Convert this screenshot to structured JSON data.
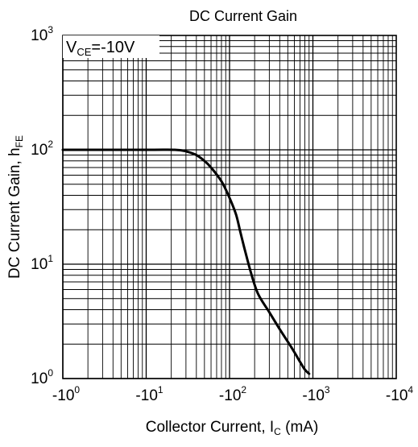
{
  "chart_data": {
    "type": "line",
    "title": "DC Current Gain",
    "xlabel": {
      "main": "Collector Current, I",
      "sub": "C",
      "unit": " (mA)"
    },
    "ylabel": {
      "main": "DC Current Gain, h",
      "sub": "FE"
    },
    "annotation": {
      "v": "V",
      "sub": "CE",
      "rest": "=-10V"
    },
    "x_scale": "log",
    "y_scale": "log",
    "xlim": [
      1,
      10000
    ],
    "ylim": [
      1,
      1000
    ],
    "grid": true,
    "x_ticks": [
      {
        "base": "-10",
        "exp": "0"
      },
      {
        "base": "-10",
        "exp": "1"
      },
      {
        "base": "-10",
        "exp": "2"
      },
      {
        "base": "-10",
        "exp": "3"
      },
      {
        "base": "-10",
        "exp": "4"
      }
    ],
    "y_ticks": [
      {
        "base": "10",
        "exp": "0"
      },
      {
        "base": "10",
        "exp": "1"
      },
      {
        "base": "10",
        "exp": "2"
      },
      {
        "base": "10",
        "exp": "3"
      }
    ],
    "series": [
      {
        "color": "#000000",
        "points": [
          [
            1,
            100
          ],
          [
            10,
            100
          ],
          [
            22,
            100
          ],
          [
            30,
            97
          ],
          [
            40,
            90
          ],
          [
            50,
            80
          ],
          [
            60,
            70
          ],
          [
            80,
            53
          ],
          [
            100,
            38
          ],
          [
            120,
            27
          ],
          [
            135,
            19
          ],
          [
            150,
            14
          ],
          [
            180,
            8.5
          ],
          [
            220,
            5.5
          ],
          [
            300,
            3.8
          ],
          [
            400,
            2.7
          ],
          [
            500,
            2.1
          ],
          [
            600,
            1.7
          ],
          [
            700,
            1.4
          ],
          [
            800,
            1.2
          ],
          [
            900,
            1.1
          ]
        ]
      }
    ]
  }
}
